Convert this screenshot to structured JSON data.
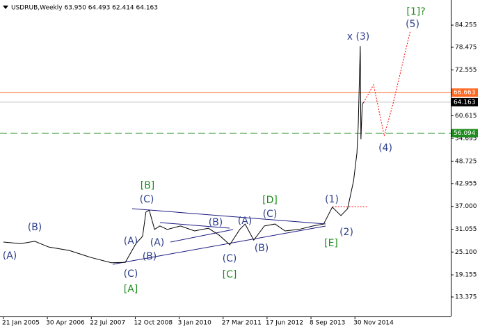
{
  "chart_data": {
    "type": "line",
    "title": "USDRUB,Weekly  63.950 64.493 62.414 64.163",
    "xlim": [
      -5.2,
      672
    ],
    "ylim": [
      8.3,
      90.8
    ],
    "xticks": [
      {
        "value": 0,
        "label": "21 Jan 2005"
      },
      {
        "value": 66,
        "label": "30 Apr 2006"
      },
      {
        "value": 132,
        "label": "22 Jul 2007"
      },
      {
        "value": 198,
        "label": "12 Oct 2008"
      },
      {
        "value": 264,
        "label": "3 Jan 2010"
      },
      {
        "value": 330,
        "label": "27 Mar 2011"
      },
      {
        "value": 396,
        "label": "17 Jun 2012"
      },
      {
        "value": 462,
        "label": "8 Sep 2013"
      },
      {
        "value": 528,
        "label": "30 Nov 2014"
      }
    ],
    "yticks": [
      84.255,
      78.475,
      72.555,
      60.615,
      54.695,
      48.725,
      42.955,
      {
        "value": 37,
        "label": "37.000"
      },
      31.055,
      {
        "value": 25.1,
        "label": "25.100"
      },
      19.155,
      13.375
    ],
    "series": [
      {
        "name": "USDRUB",
        "color": "#000000",
        "style": "solid",
        "x": [
          0,
          26,
          47,
          68,
          99,
          131,
          162,
          183,
          199,
          209,
          214,
          219,
          227,
          235,
          246,
          266,
          287,
          308,
          324,
          340,
          355,
          363,
          376,
          392,
          408,
          423,
          444,
          465,
          481,
          494,
          507,
          517,
          526,
          531,
          533,
          536,
          537,
          539,
          541
        ],
        "values": [
          27.7,
          27.3,
          27.9,
          26.4,
          25.5,
          23.7,
          22.3,
          22.4,
          27.3,
          29.2,
          35.5,
          36.0,
          31.0,
          31.9,
          31.0,
          31.9,
          30.6,
          31.3,
          29.5,
          27.0,
          31.0,
          32.4,
          28.2,
          31.9,
          32.4,
          30.6,
          31.0,
          31.9,
          32.4,
          36.8,
          34.6,
          36.4,
          43.7,
          50.9,
          58.2,
          78.8,
          54.5,
          63.6,
          64.1
        ]
      },
      {
        "name": "Forecast",
        "color": "#ff0000",
        "style": "dotted",
        "x": [
          541,
          556,
          572,
          585,
          611
        ],
        "values": [
          64.1,
          68.7,
          55.4,
          63.6,
          82.6
        ]
      },
      {
        "name": "Level",
        "color": "#ff0000",
        "style": "dotted",
        "x": [
          494,
          547
        ],
        "values": [
          36.9,
          36.9
        ]
      }
    ],
    "hlines": [
      {
        "value": 64.163,
        "color": "#c0c0c0",
        "label_bg": "#000000",
        "style": "solid"
      },
      {
        "value": 66.663,
        "color": "#ff6820",
        "label_bg": "#ff6820",
        "style": "solid"
      },
      {
        "value": 56.094,
        "color": "#1e8c1e",
        "label_bg": "#1e8c1e",
        "style": "dashed"
      }
    ],
    "annotations": [
      {
        "text": "[1]?",
        "color": "#1e8c1e"
      },
      {
        "text": "(5)",
        "color": "#2d3e8c"
      },
      {
        "text": "x (3)",
        "color": "#2d3e8c"
      },
      {
        "text": "(4)",
        "color": "#2d3e8c"
      },
      {
        "text": "(1)",
        "color": "#2d3e8c"
      },
      {
        "text": "(2)",
        "color": "#2d3e8c"
      },
      {
        "text": "[E]",
        "color": "#1e8c1e"
      },
      {
        "text": "[D]",
        "color": "#1e8c1e"
      },
      {
        "text": "(C)",
        "color": "#2d3e8c"
      },
      {
        "text": "(A)",
        "color": "#2d3e8c"
      },
      {
        "text": "(B)",
        "color": "#2d3e8c"
      },
      {
        "text": "(C)",
        "color": "#2d3e8c"
      },
      {
        "text": "[C]",
        "color": "#1e8c1e"
      },
      {
        "text": "(B)",
        "color": "#2d3e8c"
      },
      {
        "text": "(A)",
        "color": "#2d3e8c"
      },
      {
        "text": "(A)",
        "color": "#2d3e8c"
      },
      {
        "text": "(B)",
        "color": "#2d3e8c"
      },
      {
        "text": "(C)",
        "color": "#2d3e8c"
      },
      {
        "text": "[B]",
        "color": "#1e8c1e"
      },
      {
        "text": "(C)",
        "color": "#2d3e8c"
      },
      {
        "text": "[A]",
        "color": "#1e8c1e"
      },
      {
        "text": "(B)",
        "color": "#2d3e8c"
      },
      {
        "text": "(A)",
        "color": "#2d3e8c"
      }
    ]
  }
}
